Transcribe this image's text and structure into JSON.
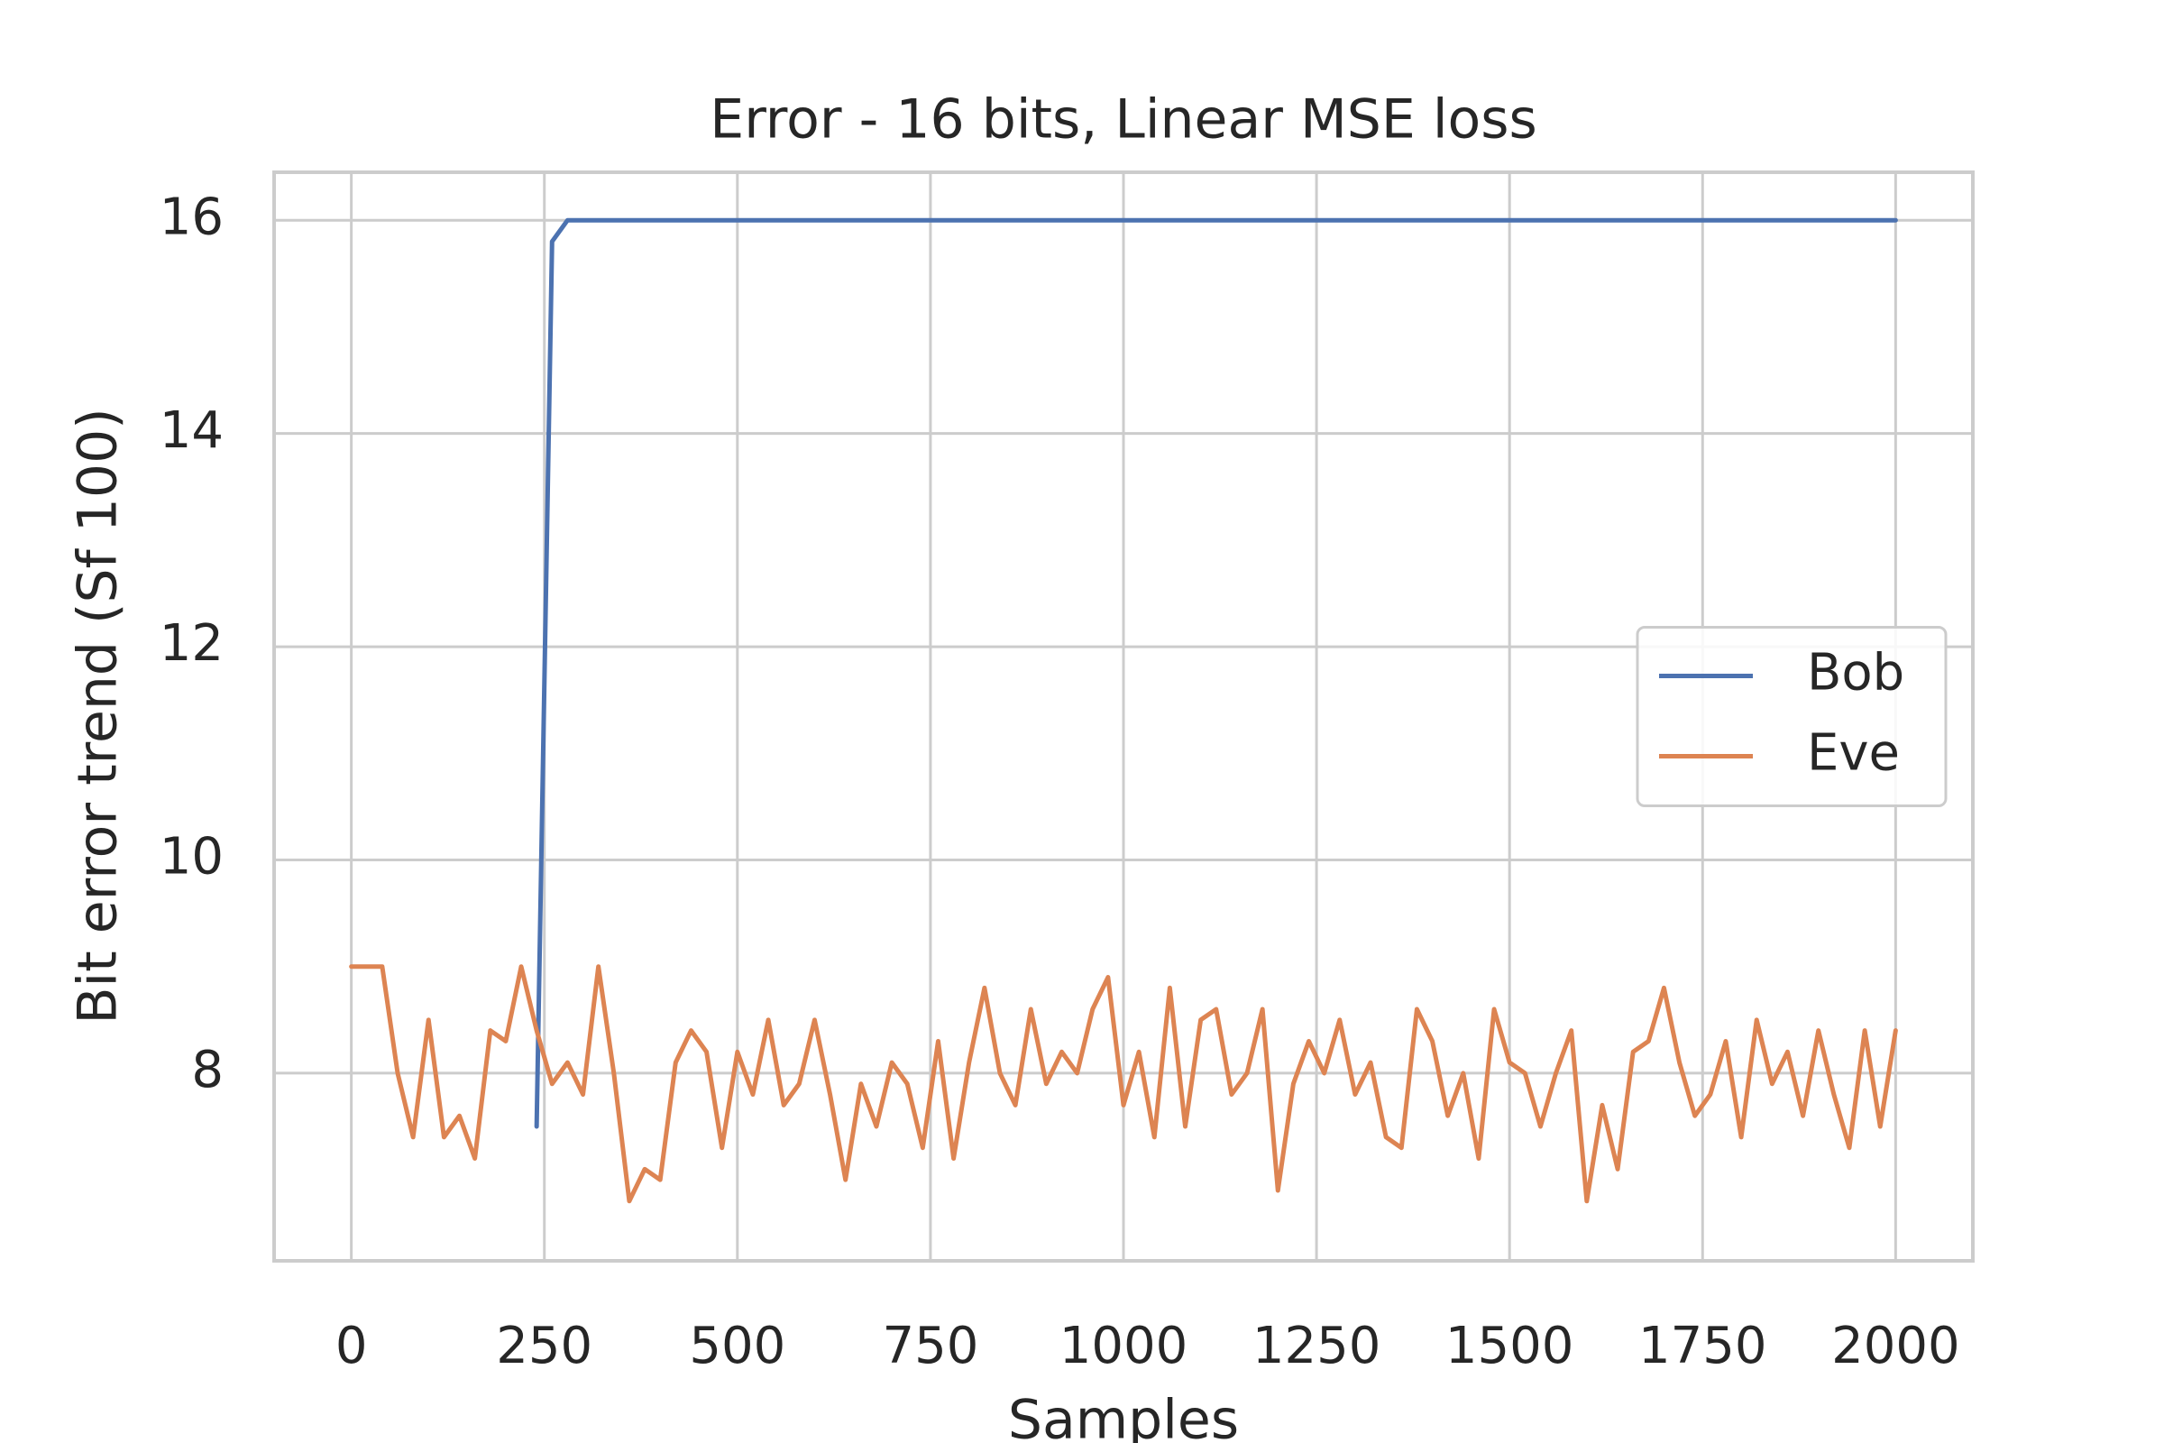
{
  "chart_data": {
    "type": "line",
    "title": "Error - 16 bits, Linear MSE loss",
    "x_label": "Samples",
    "y_label": "Bit error trend (Sf 100)",
    "x": [
      0,
      20,
      40,
      60,
      80,
      100,
      120,
      140,
      160,
      180,
      200,
      220,
      240,
      260,
      280,
      300,
      320,
      340,
      360,
      380,
      400,
      420,
      440,
      460,
      480,
      500,
      520,
      540,
      560,
      580,
      600,
      620,
      640,
      660,
      680,
      700,
      720,
      740,
      760,
      780,
      800,
      820,
      840,
      860,
      880,
      900,
      920,
      940,
      960,
      980,
      1000,
      1020,
      1040,
      1060,
      1080,
      1100,
      1120,
      1140,
      1160,
      1180,
      1200,
      1220,
      1240,
      1260,
      1280,
      1300,
      1320,
      1340,
      1360,
      1380,
      1400,
      1420,
      1440,
      1460,
      1480,
      1500,
      1520,
      1540,
      1560,
      1580,
      1600,
      1620,
      1640,
      1660,
      1680,
      1700,
      1720,
      1740,
      1760,
      1780,
      1800,
      1820,
      1840,
      1860,
      1880,
      1900,
      1920,
      1940,
      1960,
      1980,
      2000
    ],
    "series": [
      {
        "name": "Bob",
        "color": "#4c72b0",
        "values": [
          null,
          null,
          null,
          null,
          null,
          null,
          null,
          null,
          null,
          null,
          null,
          null,
          7.5,
          15.8,
          16,
          16,
          16,
          16,
          16,
          16,
          16,
          16,
          16,
          16,
          16,
          16,
          16,
          16,
          16,
          16,
          16,
          16,
          16,
          16,
          16,
          16,
          16,
          16,
          16,
          16,
          16,
          16,
          16,
          16,
          16,
          16,
          16,
          16,
          16,
          16,
          16,
          16,
          16,
          16,
          16,
          16,
          16,
          16,
          16,
          16,
          16,
          16,
          16,
          16,
          16,
          16,
          16,
          16,
          16,
          16,
          16,
          16,
          16,
          16,
          16,
          16,
          16,
          16,
          16,
          16,
          16,
          16,
          16,
          16,
          16,
          16,
          16,
          16,
          16,
          16,
          16,
          16,
          16,
          16,
          16,
          16,
          16,
          16,
          16,
          16,
          16
        ]
      },
      {
        "name": "Eve",
        "color": "#dd8452",
        "values": [
          9.0,
          9.0,
          9.0,
          8.0,
          7.4,
          8.5,
          7.4,
          7.6,
          7.2,
          8.4,
          8.3,
          9.0,
          8.4,
          7.9,
          8.1,
          7.8,
          9.0,
          8.0,
          6.8,
          7.1,
          7.0,
          8.1,
          8.4,
          8.2,
          7.3,
          8.2,
          7.8,
          8.5,
          7.7,
          7.9,
          8.5,
          7.8,
          7.0,
          7.9,
          7.5,
          8.1,
          7.9,
          7.3,
          8.3,
          7.2,
          8.1,
          8.8,
          8.0,
          7.7,
          8.6,
          7.9,
          8.2,
          8.0,
          8.6,
          8.9,
          7.7,
          8.2,
          7.4,
          8.8,
          7.5,
          8.5,
          8.6,
          7.8,
          8.0,
          8.6,
          6.9,
          7.9,
          8.3,
          8.0,
          8.5,
          7.8,
          8.1,
          7.4,
          7.3,
          8.6,
          8.3,
          7.6,
          8.0,
          7.2,
          8.6,
          8.1,
          8.0,
          7.5,
          8.0,
          8.4,
          6.8,
          7.7,
          7.1,
          8.2,
          8.3,
          8.8,
          8.1,
          7.6,
          7.8,
          8.3,
          7.4,
          8.5,
          7.9,
          8.2,
          7.6,
          8.4,
          7.8,
          7.3,
          8.4,
          7.5,
          8.4
        ]
      }
    ],
    "xlim": [
      -100,
      2100
    ],
    "xticks": [
      0,
      250,
      500,
      750,
      1000,
      1250,
      1500,
      1750,
      2000
    ],
    "ylim": [
      6.24,
      16.45
    ],
    "yticks": [
      8,
      10,
      12,
      14,
      16
    ],
    "grid": true,
    "legend": "center right"
  }
}
